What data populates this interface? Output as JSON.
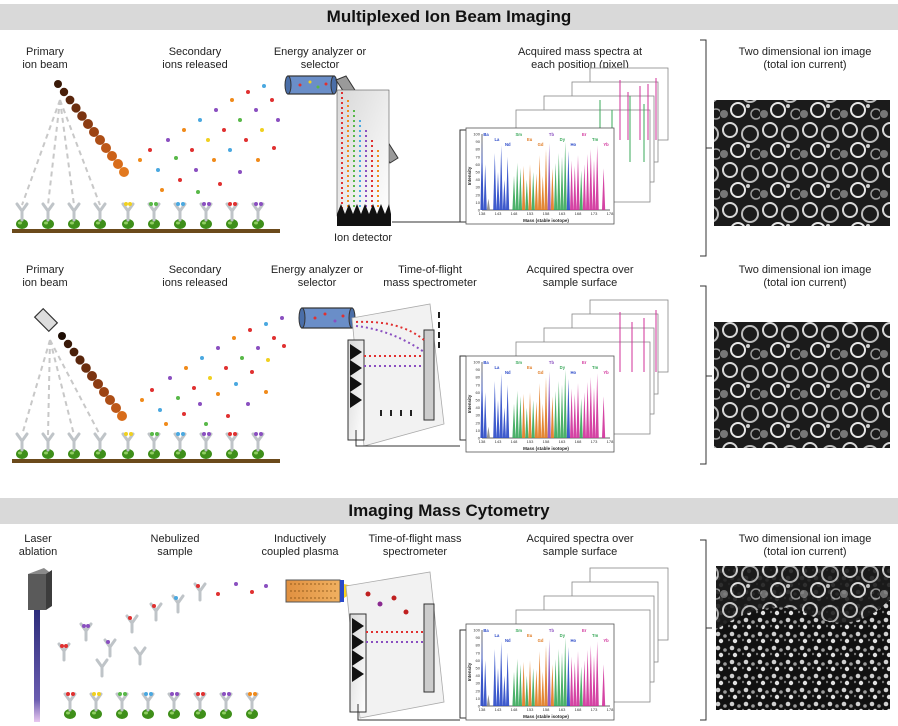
{
  "colors": {
    "banner_bg": "#d9d9d9",
    "beam_brown": "#6b2e0e",
    "beam_orange": "#e2791f",
    "antibody_gray": "#bfc4c8",
    "cell_green": "#3f8f1a",
    "ground_brown": "#6b4a1b",
    "laser_purple": "#7a5cb0",
    "ion_red": "#e03030",
    "ion_purple": "#8a4fc0",
    "ion_orange": "#f08a1a",
    "ion_blue": "#4aa8e0",
    "ion_green": "#58b848",
    "ion_yellow": "#f0d020",
    "spectrum_blue": "#2a49c8",
    "spectrum_green": "#39a85a",
    "spectrum_orange": "#e07a20",
    "spectrum_magenta": "#d0309a"
  },
  "section1": {
    "title": "Multiplexed Ion Beam Imaging",
    "primary_beam": [
      "Primary",
      "ion beam"
    ],
    "secondary_ions": [
      "Secondary",
      "ions released"
    ],
    "analyzer": [
      "Energy analyzer or",
      "selector"
    ],
    "spectra": [
      "Acquired mass spectra at",
      "each position (pixel)"
    ],
    "ion_image": [
      "Two dimensional ion image",
      "(total ion current)"
    ],
    "detector": "Ion detector"
  },
  "section2": {
    "primary_beam": [
      "Primary",
      "ion beam"
    ],
    "secondary_ions": [
      "Secondary",
      "ions released"
    ],
    "analyzer": [
      "Energy analyzer or",
      "selector"
    ],
    "tof": [
      "Time-of-flight",
      "mass spectrometer"
    ],
    "spectra": [
      "Acquired spectra over",
      "sample surface"
    ],
    "ion_image": [
      "Two dimensional ion image",
      "(total ion current)"
    ]
  },
  "section3": {
    "title": "Imaging Mass Cytometry",
    "laser": [
      "Laser",
      "ablation"
    ],
    "nebulized": [
      "Nebulized",
      "sample"
    ],
    "plasma": [
      "Inductively",
      "coupled plasma"
    ],
    "tof": [
      "Time-of-flight mass",
      "spectrometer"
    ],
    "spectra": [
      "Acquired spectra over",
      "sample surface"
    ],
    "ion_image": [
      "Two dimensional ion image",
      "(total ion current)"
    ]
  },
  "spectrum": {
    "ylabel": "Intensity",
    "xlabel": "Mass (stable isotope)",
    "yticks": [
      "100",
      "90",
      "80",
      "70",
      "60",
      "50",
      "40",
      "30",
      "20",
      "10",
      "0"
    ],
    "xticks": [
      "138",
      "143",
      "148",
      "153",
      "158",
      "163",
      "168",
      "173",
      "178"
    ],
    "element_labels": [
      {
        "text": "Ba",
        "color": "#2a49c8"
      },
      {
        "text": "La",
        "color": "#2a49c8"
      },
      {
        "text": "Nd",
        "color": "#2a49c8"
      },
      {
        "text": "Sm",
        "color": "#39a85a"
      },
      {
        "text": "Eu",
        "color": "#e07a20"
      },
      {
        "text": "Gd",
        "color": "#e07a20"
      },
      {
        "text": "Tb",
        "color": "#8a4fc0"
      },
      {
        "text": "Dy",
        "color": "#39a85a"
      },
      {
        "text": "Ho",
        "color": "#2a49c8"
      },
      {
        "text": "Er",
        "color": "#d0309a"
      },
      {
        "text": "Tm",
        "color": "#39a85a"
      },
      {
        "text": "Yb",
        "color": "#d0309a"
      }
    ],
    "peaks": [
      {
        "m": 138,
        "h": 92,
        "c": "#2a49c8"
      },
      {
        "m": 139,
        "h": 60,
        "c": "#2a49c8"
      },
      {
        "m": 140,
        "h": 15,
        "c": "#888888"
      },
      {
        "m": 142,
        "h": 75,
        "c": "#2a49c8"
      },
      {
        "m": 143,
        "h": 50,
        "c": "#2a49c8"
      },
      {
        "m": 144,
        "h": 85,
        "c": "#2a49c8"
      },
      {
        "m": 145,
        "h": 40,
        "c": "#2a49c8"
      },
      {
        "m": 146,
        "h": 70,
        "c": "#2a49c8"
      },
      {
        "m": 148,
        "h": 45,
        "c": "#39a85a"
      },
      {
        "m": 149,
        "h": 62,
        "c": "#39a85a"
      },
      {
        "m": 150,
        "h": 55,
        "c": "#39a85a"
      },
      {
        "m": 151,
        "h": 58,
        "c": "#e07a20"
      },
      {
        "m": 152,
        "h": 40,
        "c": "#39a85a"
      },
      {
        "m": 153,
        "h": 60,
        "c": "#e07a20"
      },
      {
        "m": 154,
        "h": 50,
        "c": "#39a85a"
      },
      {
        "m": 155,
        "h": 48,
        "c": "#e07a20"
      },
      {
        "m": 156,
        "h": 72,
        "c": "#e07a20"
      },
      {
        "m": 157,
        "h": 45,
        "c": "#e07a20"
      },
      {
        "m": 158,
        "h": 80,
        "c": "#e07a20"
      },
      {
        "m": 159,
        "h": 88,
        "c": "#8a4fc0"
      },
      {
        "m": 160,
        "h": 55,
        "c": "#e07a20"
      },
      {
        "m": 161,
        "h": 62,
        "c": "#39a85a"
      },
      {
        "m": 162,
        "h": 75,
        "c": "#39a85a"
      },
      {
        "m": 163,
        "h": 70,
        "c": "#39a85a"
      },
      {
        "m": 164,
        "h": 90,
        "c": "#39a85a"
      },
      {
        "m": 165,
        "h": 78,
        "c": "#2a49c8"
      },
      {
        "m": 166,
        "h": 65,
        "c": "#d0309a"
      },
      {
        "m": 167,
        "h": 58,
        "c": "#d0309a"
      },
      {
        "m": 168,
        "h": 72,
        "c": "#d0309a"
      },
      {
        "m": 169,
        "h": 52,
        "c": "#39a85a"
      },
      {
        "m": 170,
        "h": 60,
        "c": "#d0309a"
      },
      {
        "m": 171,
        "h": 74,
        "c": "#d0309a"
      },
      {
        "m": 172,
        "h": 80,
        "c": "#d0309a"
      },
      {
        "m": 173,
        "h": 66,
        "c": "#d0309a"
      },
      {
        "m": 174,
        "h": 85,
        "c": "#d0309a"
      },
      {
        "m": 176,
        "h": 55,
        "c": "#d0309a"
      }
    ]
  }
}
